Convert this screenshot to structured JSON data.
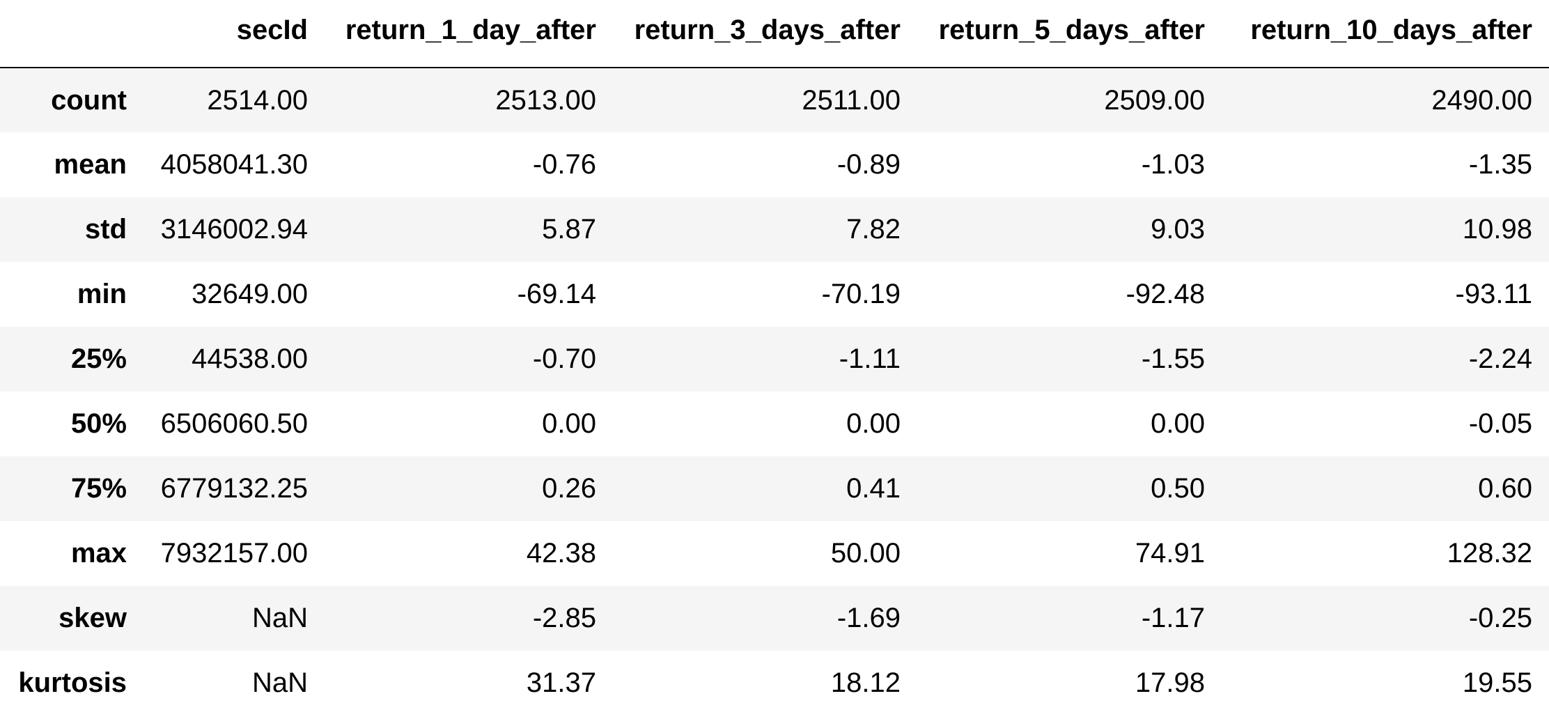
{
  "table": {
    "columns": [
      "secId",
      "return_1_day_after",
      "return_3_days_after",
      "return_5_days_after",
      "return_10_days_after"
    ],
    "rows": [
      {
        "label": "count",
        "values": [
          "2514.00",
          "2513.00",
          "2511.00",
          "2509.00",
          "2490.00"
        ]
      },
      {
        "label": "mean",
        "values": [
          "4058041.30",
          "-0.76",
          "-0.89",
          "-1.03",
          "-1.35"
        ]
      },
      {
        "label": "std",
        "values": [
          "3146002.94",
          "5.87",
          "7.82",
          "9.03",
          "10.98"
        ]
      },
      {
        "label": "min",
        "values": [
          "32649.00",
          "-69.14",
          "-70.19",
          "-92.48",
          "-93.11"
        ]
      },
      {
        "label": "25%",
        "values": [
          "44538.00",
          "-0.70",
          "-1.11",
          "-1.55",
          "-2.24"
        ]
      },
      {
        "label": "50%",
        "values": [
          "6506060.50",
          "0.00",
          "0.00",
          "0.00",
          "-0.05"
        ]
      },
      {
        "label": "75%",
        "values": [
          "6779132.25",
          "0.26",
          "0.41",
          "0.50",
          "0.60"
        ]
      },
      {
        "label": "max",
        "values": [
          "7932157.00",
          "42.38",
          "50.00",
          "74.91",
          "128.32"
        ]
      },
      {
        "label": "skew",
        "values": [
          "NaN",
          "-2.85",
          "-1.69",
          "-1.17",
          "-0.25"
        ]
      },
      {
        "label": "kurtosis",
        "values": [
          "NaN",
          "31.37",
          "18.12",
          "17.98",
          "19.55"
        ]
      }
    ]
  }
}
